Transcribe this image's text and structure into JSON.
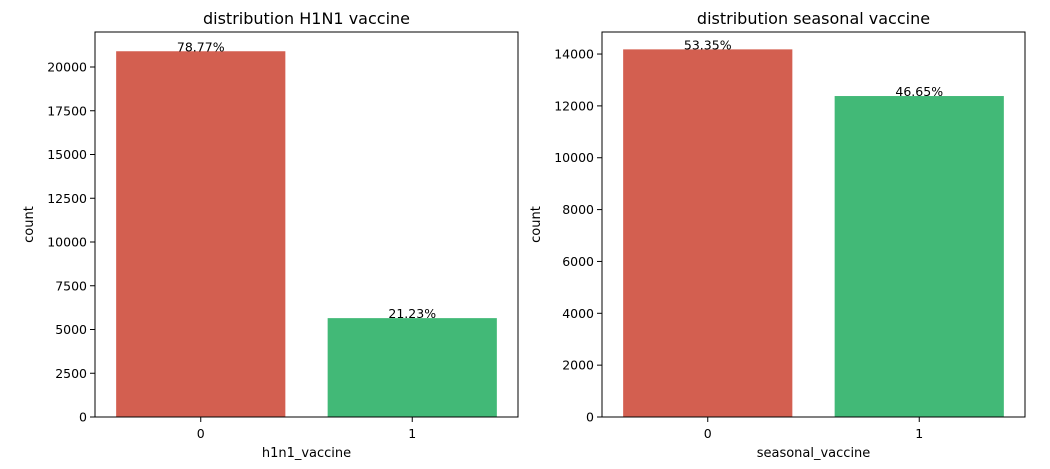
{
  "chart_data": [
    {
      "type": "bar",
      "title": "distribution H1N1 vaccine",
      "xlabel": "h1n1_vaccine",
      "ylabel": "count",
      "categories": [
        "0",
        "1"
      ],
      "values": [
        20900,
        5650
      ],
      "data_labels": [
        "78.77%",
        "21.23%"
      ],
      "colors": [
        "#d35f50",
        "#42b977"
      ],
      "ylim": [
        0,
        22000
      ],
      "yticks": [
        0,
        2500,
        5000,
        7500,
        10000,
        12500,
        15000,
        17500,
        20000
      ],
      "grid": false
    },
    {
      "type": "bar",
      "title": "distribution seasonal vaccine",
      "xlabel": "seasonal_vaccine",
      "ylabel": "count",
      "categories": [
        "0",
        "1"
      ],
      "values": [
        14180,
        12380
      ],
      "data_labels": [
        "53.35%",
        "46.65%"
      ],
      "colors": [
        "#d35f50",
        "#42b977"
      ],
      "ylim": [
        0,
        14850
      ],
      "yticks": [
        0,
        2000,
        4000,
        6000,
        8000,
        10000,
        12000,
        14000
      ],
      "grid": false
    }
  ]
}
